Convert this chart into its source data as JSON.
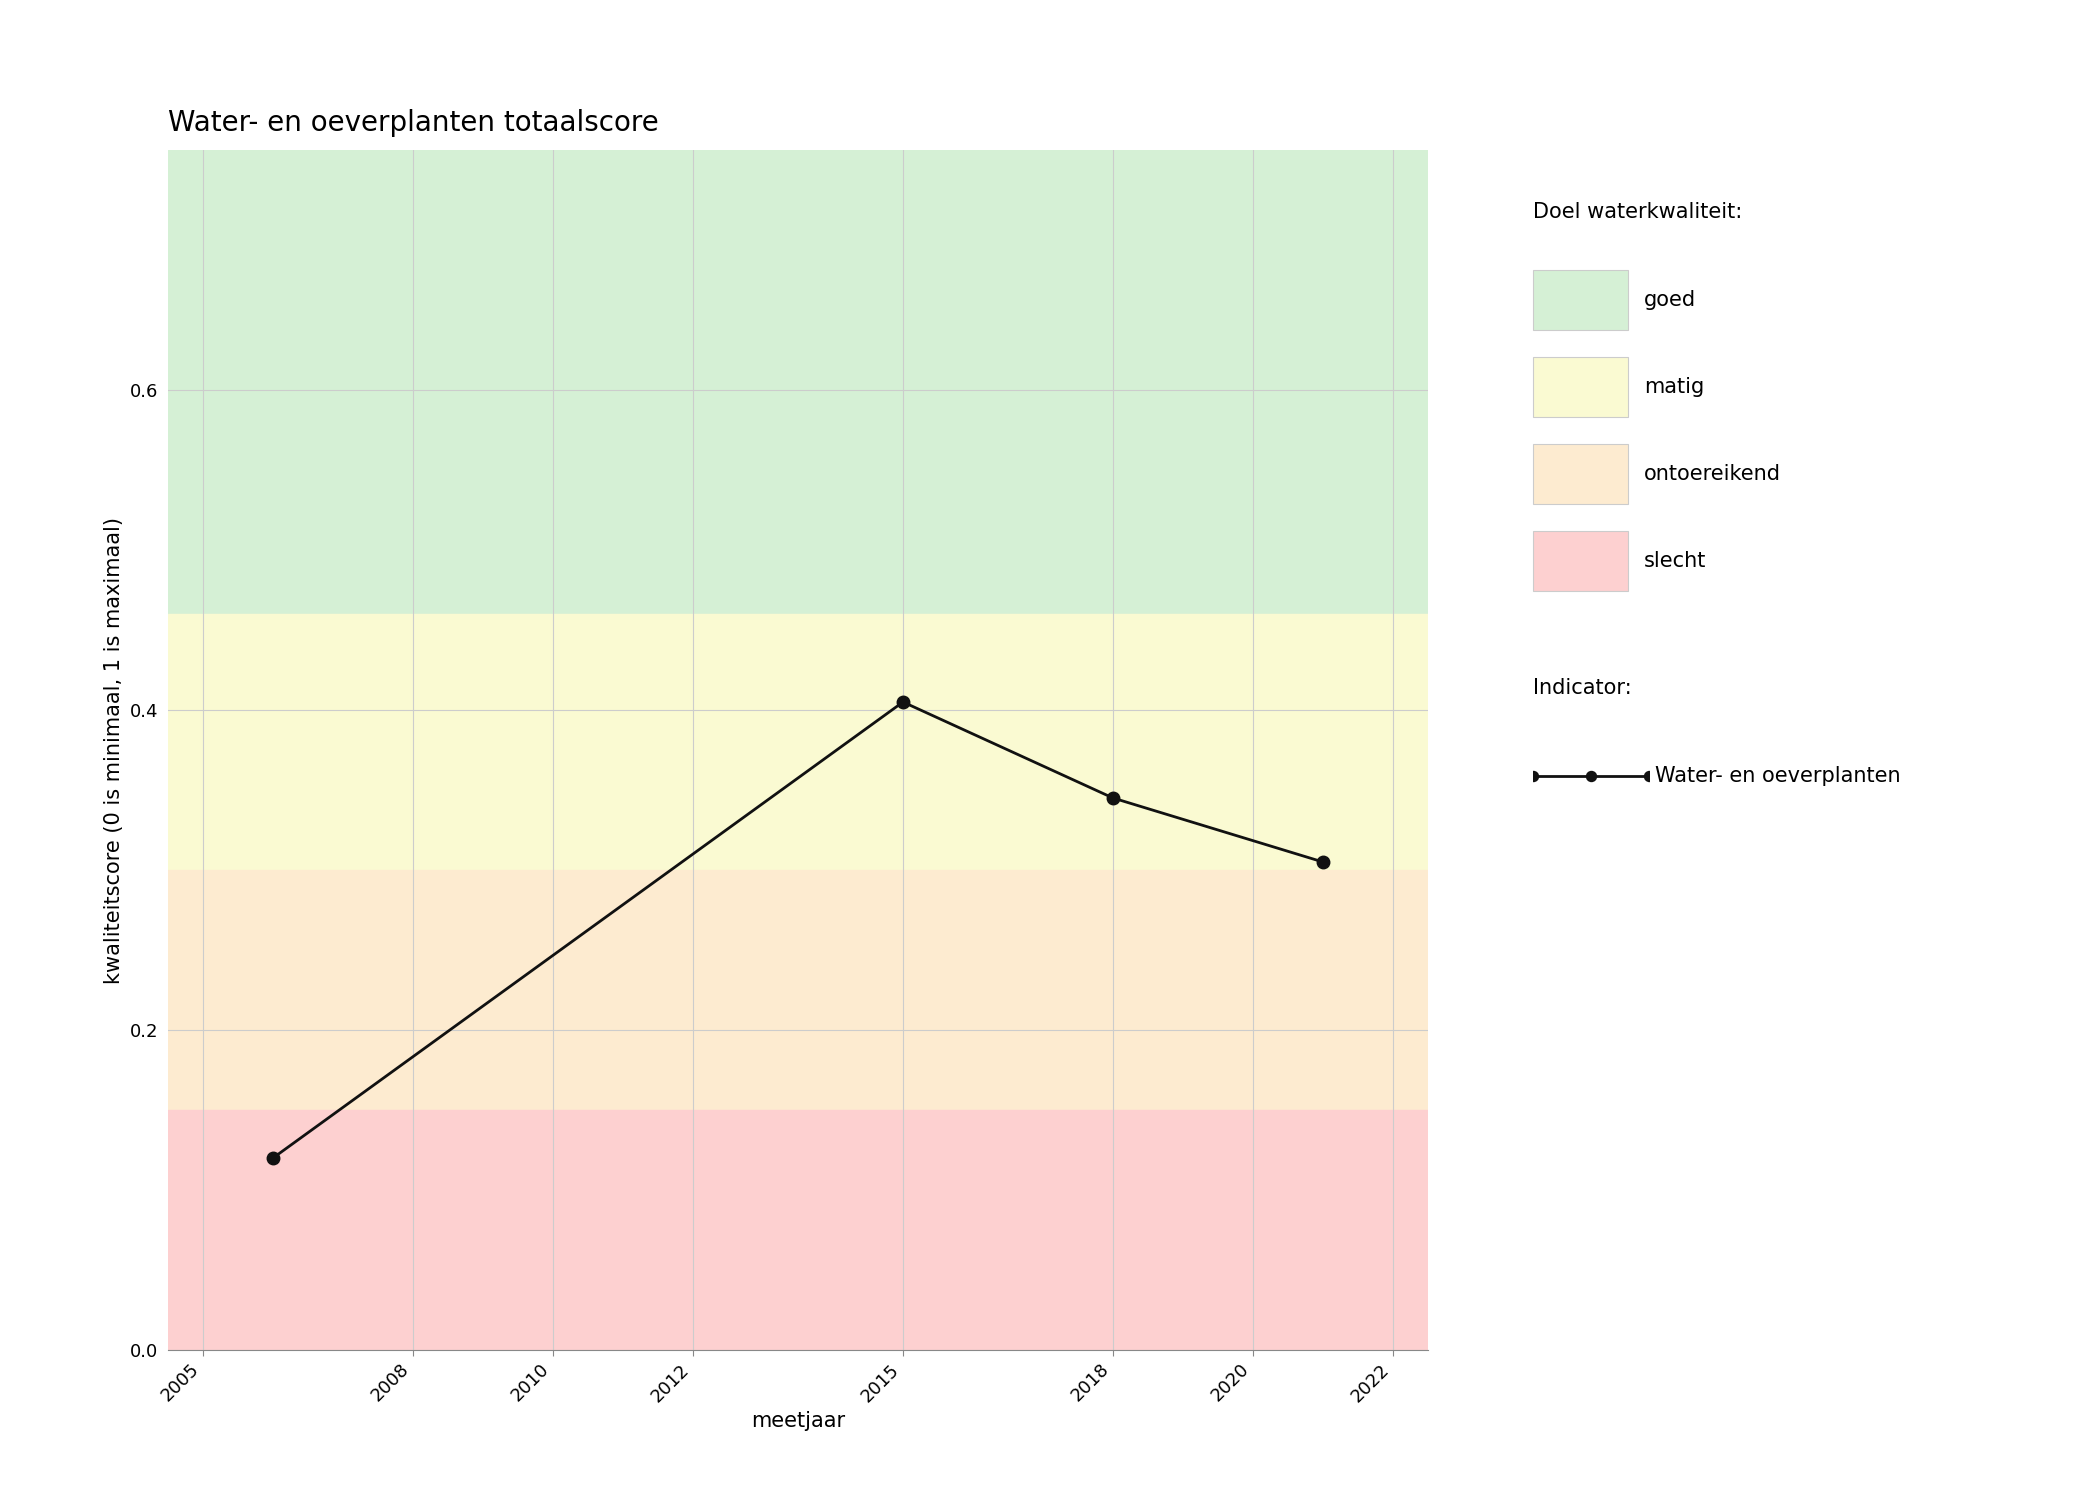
{
  "title": "Water- en oeverplanten totaalscore",
  "xlabel": "meetjaar",
  "ylabel": "kwaliteitscore (0 is minimaal, 1 is maximaal)",
  "xlim": [
    2004.5,
    2022.5
  ],
  "ylim": [
    0.0,
    0.75
  ],
  "xticks": [
    2005,
    2008,
    2010,
    2012,
    2015,
    2018,
    2020,
    2022
  ],
  "yticks": [
    0.0,
    0.2,
    0.4,
    0.6
  ],
  "x_data": [
    2006,
    2015,
    2018,
    2021
  ],
  "y_data": [
    0.12,
    0.405,
    0.345,
    0.305
  ],
  "bg_bands": [
    {
      "label": "goed",
      "color": "#d5f0d5",
      "ymin": 0.46,
      "ymax": 0.75
    },
    {
      "label": "matig",
      "color": "#fafad2",
      "ymin": 0.3,
      "ymax": 0.46
    },
    {
      "label": "ontoereikend",
      "color": "#fdebd0",
      "ymin": 0.15,
      "ymax": 0.3
    },
    {
      "label": "slecht",
      "color": "#fdd0d0",
      "ymin": 0.0,
      "ymax": 0.15
    }
  ],
  "legend_bg_colors": [
    "#d5f0d5",
    "#fafad2",
    "#fdebd0",
    "#fdd0d0"
  ],
  "legend_bg_labels": [
    "goed",
    "matig",
    "ontoereikend",
    "slecht"
  ],
  "legend_title_bg": "Doel waterkwaliteit:",
  "legend_title_indicator": "Indicator:",
  "legend_indicator_label": "Water- en oeverplanten",
  "line_color": "#111111",
  "marker": "o",
  "markersize": 9,
  "linewidth": 2,
  "title_fontsize": 20,
  "axis_label_fontsize": 15,
  "tick_fontsize": 13,
  "legend_fontsize": 15,
  "background_color": "#ffffff",
  "grid_color": "#cccccc",
  "grid_linewidth": 0.8
}
